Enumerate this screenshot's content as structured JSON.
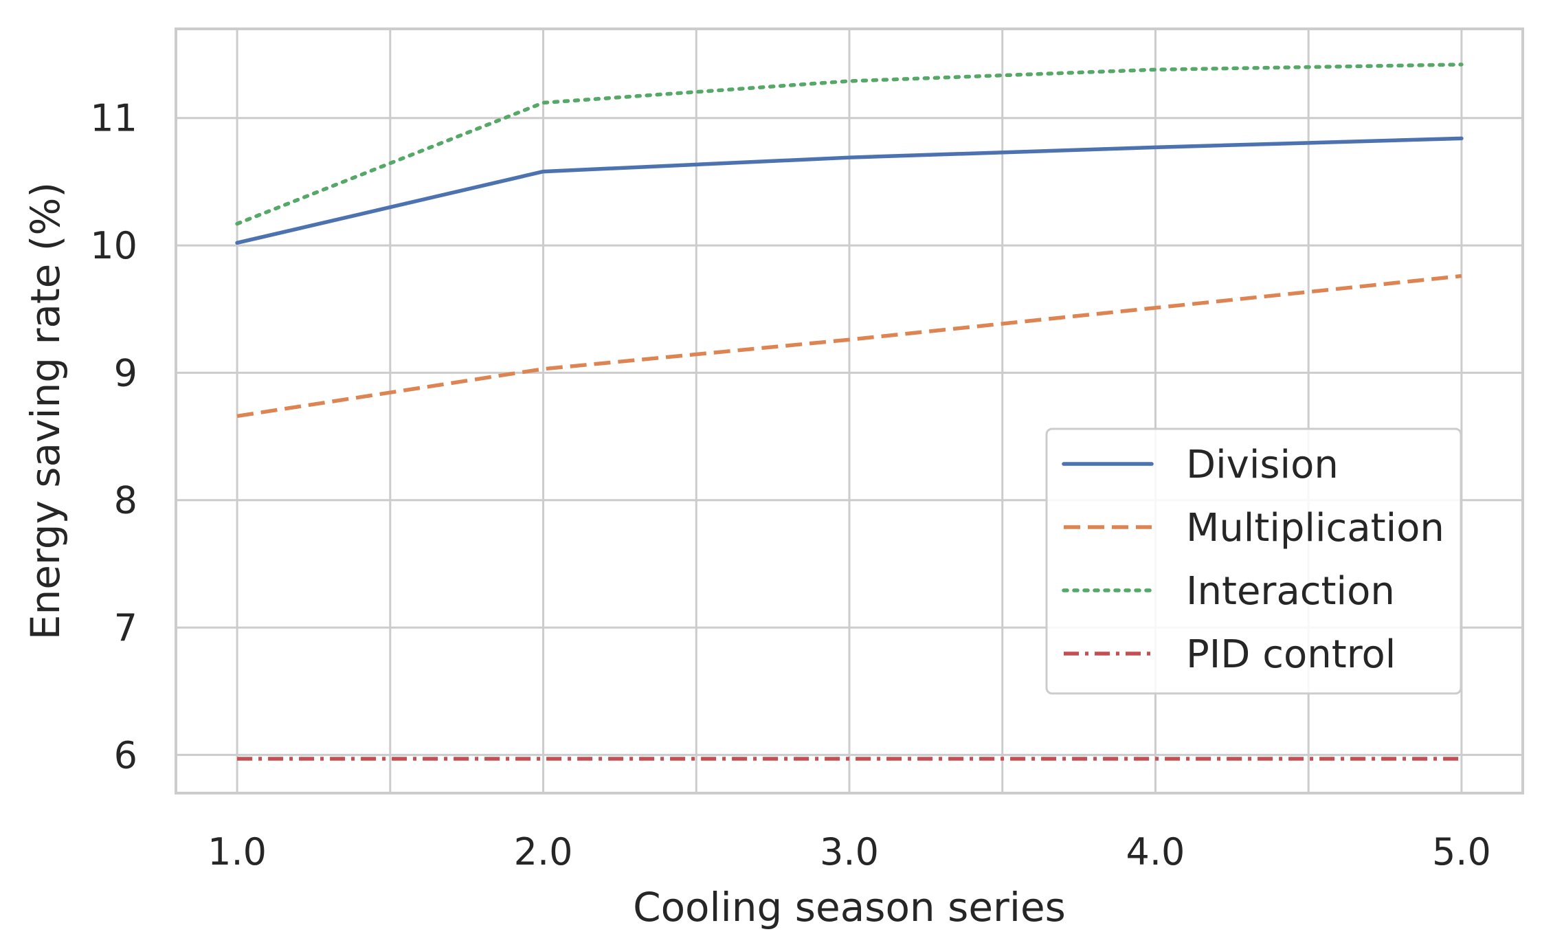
{
  "chart_data": {
    "type": "line",
    "title": "",
    "xlabel": "Cooling season series",
    "ylabel": "Energy saving rate (%)",
    "x": [
      1.0,
      2.0,
      3.0,
      4.0,
      5.0
    ],
    "x_ticks": [
      "1.0",
      "2.0",
      "3.0",
      "4.0",
      "5.0"
    ],
    "xlim": [
      0.8,
      5.2
    ],
    "y_ticks": [
      "6",
      "7",
      "8",
      "9",
      "10",
      "11"
    ],
    "ylim": [
      5.7,
      11.7
    ],
    "grid": true,
    "legend_position": "center-right",
    "series": [
      {
        "name": "Division",
        "values": [
          10.02,
          10.58,
          10.69,
          10.77,
          10.84
        ],
        "color": "#4c72b0",
        "style": "solid"
      },
      {
        "name": "Multiplication",
        "values": [
          8.66,
          9.03,
          9.26,
          9.51,
          9.76
        ],
        "color": "#dd8452",
        "style": "dashed"
      },
      {
        "name": "Interaction",
        "values": [
          10.17,
          11.12,
          11.29,
          11.38,
          11.42
        ],
        "color": "#55a868",
        "style": "dotted"
      },
      {
        "name": "PID control",
        "values": [
          5.97,
          5.97,
          5.97,
          5.97,
          5.97
        ],
        "color": "#c44e52",
        "style": "dashdot"
      }
    ]
  }
}
